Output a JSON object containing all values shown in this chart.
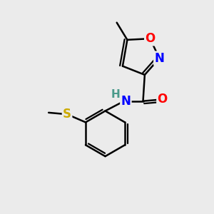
{
  "background_color": "#ebebeb",
  "atom_colors": {
    "N": "#0000ff",
    "O": "#ff0000",
    "S": "#ccaa00",
    "C": "#000000",
    "H": "#4a9a8a"
  },
  "bond_lw": 1.8,
  "font_size_atom": 12,
  "font_size_h": 11,
  "figsize": [
    3.0,
    3.0
  ],
  "dpi": 100
}
